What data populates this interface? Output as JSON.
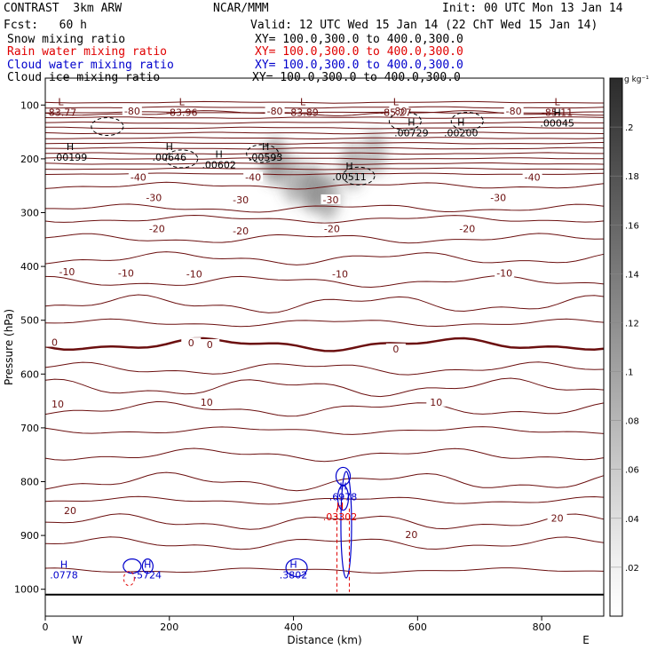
{
  "header": {
    "model": "CONTRAST  3km ARW",
    "org": "NCAR/MMM",
    "init": "Init: 00 UTC Mon 13 Jan 14",
    "fcst": "Fcst:   60 h",
    "valid": "Valid: 12 UTC Wed 15 Jan 14 (22 ChT Wed 15 Jan 14)",
    "fields": [
      {
        "label": "Snow mixing ratio",
        "xy": "XY= 100.0,300.0 to 400.0,300.0",
        "color": "#000000"
      },
      {
        "label": "Rain water mixing ratio",
        "xy": "XY= 100.0,300.0 to 400.0,300.0",
        "color": "#e00000"
      },
      {
        "label": "Cloud water mixing ratio",
        "xy": "XY= 100.0,300.0 to 400.0,300.0",
        "color": "#0000cc"
      },
      {
        "label": "Cloud ice mixing ratio",
        "xy": "XY= 100.0,300.0 to 400.0,300.0",
        "color": "#000000"
      }
    ]
  },
  "colors": {
    "temperature": "#6b0f0f",
    "rain": "#e00000",
    "cloud_water": "#0000cc",
    "cloud_ice": "#000000"
  },
  "chart_data": {
    "type": "contour",
    "xlabel": "Distance (km)",
    "ylabel": "Pressure (hPa)",
    "xlim": [
      0,
      900
    ],
    "ylim": [
      1050,
      50
    ],
    "xticks": [
      0,
      200,
      400,
      600,
      800
    ],
    "yticks": [
      100,
      200,
      300,
      400,
      500,
      600,
      700,
      800,
      900,
      1000
    ],
    "west_label": "W",
    "east_label": "E",
    "temperature_contours": [
      {
        "label": "-80",
        "pressure": 115
      },
      {
        "label": "-40",
        "pressure": 250
      },
      {
        "label": "-30",
        "pressure": 292
      },
      {
        "label": "-20",
        "pressure": 348
      },
      {
        "label": "-10",
        "pressure": 428
      },
      {
        "label": "0",
        "pressure": 545
      },
      {
        "label": "10",
        "pressure": 665
      },
      {
        "label": "20",
        "pressure": 875
      }
    ],
    "temperature_labels": [
      {
        "text": "-80",
        "x": 140,
        "p": 111
      },
      {
        "text": "-80",
        "x": 370,
        "p": 111
      },
      {
        "text": "-80",
        "x": 570,
        "p": 111
      },
      {
        "text": "-80",
        "x": 755,
        "p": 111
      },
      {
        "text": "-40",
        "x": 150,
        "p": 234
      },
      {
        "text": "-40",
        "x": 335,
        "p": 234
      },
      {
        "text": "-40",
        "x": 785,
        "p": 234
      },
      {
        "text": "-30",
        "x": 175,
        "p": 272
      },
      {
        "text": "-30",
        "x": 315,
        "p": 276
      },
      {
        "text": "-30",
        "x": 460,
        "p": 276
      },
      {
        "text": "-30",
        "x": 730,
        "p": 272
      },
      {
        "text": "-20",
        "x": 180,
        "p": 330
      },
      {
        "text": "-20",
        "x": 315,
        "p": 334
      },
      {
        "text": "-20",
        "x": 462,
        "p": 330
      },
      {
        "text": "-20",
        "x": 680,
        "p": 330
      },
      {
        "text": "-10",
        "x": 35,
        "p": 410
      },
      {
        "text": "-10",
        "x": 130,
        "p": 412
      },
      {
        "text": "-10",
        "x": 240,
        "p": 414
      },
      {
        "text": "-10",
        "x": 475,
        "p": 414
      },
      {
        "text": "-10",
        "x": 740,
        "p": 412
      },
      {
        "text": "0",
        "x": 15,
        "p": 541
      },
      {
        "text": "0",
        "x": 235,
        "p": 542
      },
      {
        "text": "0",
        "x": 265,
        "p": 545
      },
      {
        "text": "0",
        "x": 565,
        "p": 553
      },
      {
        "text": "10",
        "x": 20,
        "p": 656
      },
      {
        "text": "10",
        "x": 260,
        "p": 652
      },
      {
        "text": "10",
        "x": 630,
        "p": 652
      },
      {
        "text": "20",
        "x": 40,
        "p": 854
      },
      {
        "text": "20",
        "x": 590,
        "p": 898
      },
      {
        "text": "20",
        "x": 825,
        "p": 868
      }
    ],
    "extrema_labels": [
      {
        "type": "L",
        "value": "-83.77",
        "x": 25,
        "p": 100,
        "color": "#6b0f0f"
      },
      {
        "type": "L",
        "value": "-83.96",
        "x": 220,
        "p": 100,
        "color": "#6b0f0f"
      },
      {
        "type": "L",
        "value": "-83.89",
        "x": 415,
        "p": 100,
        "color": "#6b0f0f"
      },
      {
        "type": "L",
        "value": "-85.27",
        "x": 565,
        "p": 100,
        "color": "#6b0f0f"
      },
      {
        "type": "L",
        "value": "-85.11",
        "x": 825,
        "p": 100,
        "color": "#6b0f0f"
      },
      {
        "type": "H",
        "value": ".00045",
        "x": 825,
        "p": 120,
        "color": "#000000"
      },
      {
        "type": "H",
        "value": ".00729",
        "x": 590,
        "p": 138,
        "color": "#000000"
      },
      {
        "type": "H",
        "value": ".00200",
        "x": 670,
        "p": 138,
        "color": "#000000"
      },
      {
        "type": "H",
        "value": ".00199",
        "x": 40,
        "p": 184,
        "color": "#000000"
      },
      {
        "type": "H",
        "value": ".00646",
        "x": 200,
        "p": 184,
        "color": "#000000"
      },
      {
        "type": "H",
        "value": ".00602",
        "x": 280,
        "p": 198,
        "color": "#000000"
      },
      {
        "type": "H",
        "value": ".00593",
        "x": 355,
        "p": 184,
        "color": "#000000"
      },
      {
        "type": "H",
        "value": ".00511",
        "x": 490,
        "p": 220,
        "color": "#000000"
      },
      {
        "type": "H",
        "value": ".6978",
        "x": 480,
        "p": 815,
        "color": "#0000cc"
      },
      {
        "type": "H",
        "value": ".03302",
        "x": 475,
        "p": 852,
        "color": "#e00000"
      },
      {
        "type": "H",
        "value": ".0778",
        "x": 30,
        "p": 960,
        "color": "#0000cc"
      },
      {
        "type": "H",
        "value": ".5724",
        "x": 165,
        "p": 960,
        "color": "#0000cc"
      },
      {
        "type": "H",
        "value": ".3802",
        "x": 400,
        "p": 960,
        "color": "#0000cc"
      }
    ],
    "snow_shading": [
      {
        "x": 370,
        "p": 205,
        "intensity": 0.55
      },
      {
        "x": 400,
        "p": 240,
        "intensity": 0.4
      },
      {
        "x": 430,
        "p": 255,
        "intensity": 0.55
      },
      {
        "x": 455,
        "p": 270,
        "intensity": 0.45
      },
      {
        "x": 495,
        "p": 215,
        "intensity": 0.4
      },
      {
        "x": 530,
        "p": 190,
        "intensity": 0.35
      }
    ],
    "colorbar": {
      "unit": "g kg⁻¹",
      "labels": [
        ".02",
        ".04",
        ".06",
        ".08",
        ".1",
        ".12",
        ".14",
        ".16",
        ".18",
        ".2"
      ]
    },
    "surface_pressure": 1010
  }
}
